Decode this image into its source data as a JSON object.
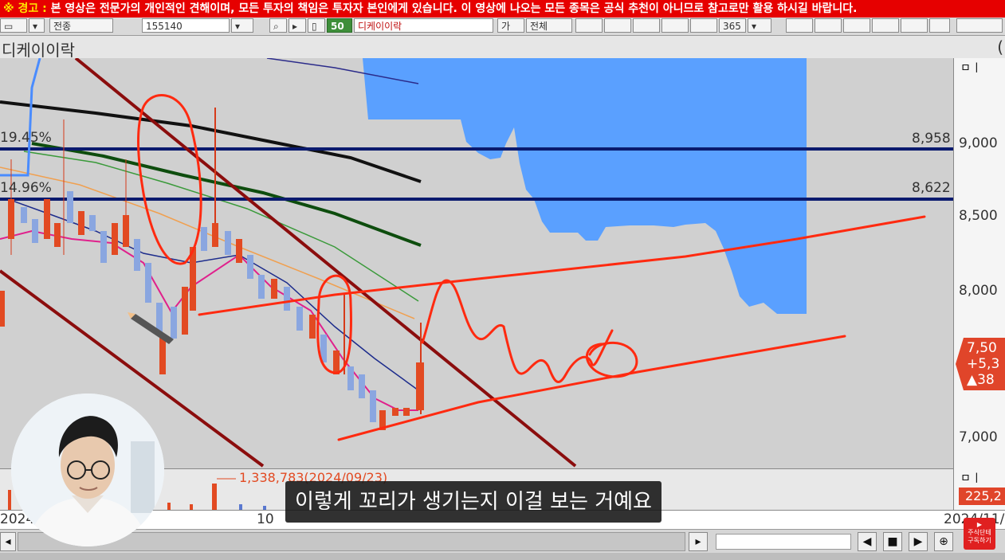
{
  "warning": {
    "tag": "※ 경고 :",
    "text": "본 영상은 전문가의 개인적인 견해이며, 모든 투자의 책임은 투자자 본인에게 있습니다. 이 영상에 나오는 모든 종목은 공식 추천이 아니므로 참고로만 활용 하시길 바랍니다."
  },
  "toolbar": {
    "market_select": "전종",
    "code_field": "155140",
    "badge": "50",
    "name_field": "디케이이락",
    "btn_chart": "가",
    "btn_all": "전체",
    "period_value": "365"
  },
  "window": {
    "title": "디케이이락",
    "paren": "("
  },
  "chart": {
    "pct_label_1": "19.45%",
    "pct_label_2": "14.96%",
    "hline_1_label": "8,958",
    "hline_2_label": "8,622",
    "y_ticks": [
      "9,000",
      "8,500",
      "8,000",
      "7,000"
    ],
    "current_price": "7,50",
    "change": "+5,3",
    "change_pct": "▲38",
    "volume_annotation": "1,338,783(2024/09/23)",
    "volume_value": "225,2",
    "x_labels": [
      "2024/0",
      "10",
      "2024/11/"
    ]
  },
  "chart_data": {
    "type": "line",
    "title": "디케이이락",
    "ylim": [
      7000,
      9500
    ],
    "y_ticks": [
      9000,
      8500,
      8000,
      7000
    ],
    "horizontal_levels": [
      8958,
      8622
    ],
    "current_price_label": "7,50",
    "volume_peak": {
      "value": 1338783,
      "date": "2024/09/23"
    }
  },
  "axis": {
    "mini_icons": "ㅁㅣ"
  },
  "subtitle": "이렇게 꼬리가 생기는지 이걸 보는 거예요",
  "logo": {
    "line1": "주식단테",
    "line2": "구독하기"
  },
  "colors": {
    "warning_bg": "#e60000",
    "cloud": "#5aa0ff",
    "annotation_red": "#ff2a10",
    "level_line": "#0a1a6e",
    "channel": "#8b0d0d"
  }
}
